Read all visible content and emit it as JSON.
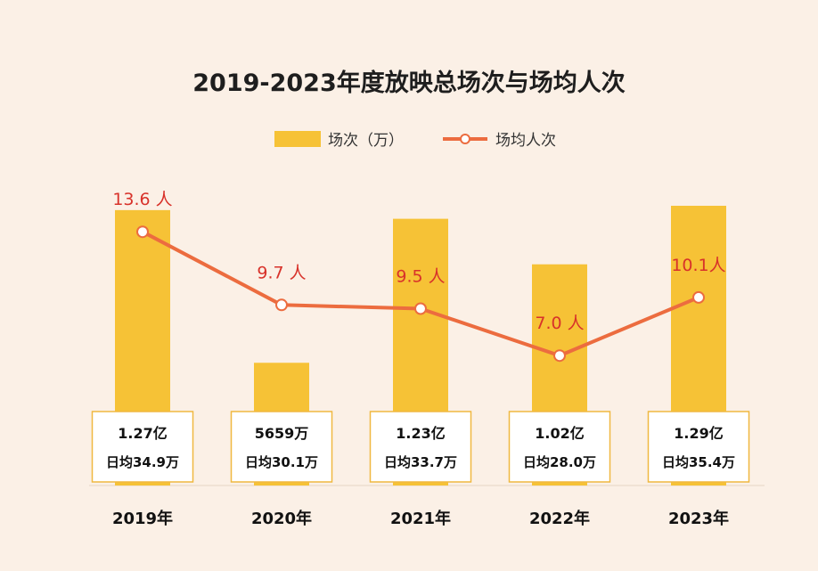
{
  "colors": {
    "background": "#fbf0e6",
    "bar": "#f6c236",
    "line": "#ec6c3f",
    "line_label": "#d8322a",
    "box_border": "#f0b841",
    "box_fill": "#ffffff",
    "text": "#111111"
  },
  "chart_data": {
    "type": "bar",
    "title": "2019-2023年度放映总场次与场均人次",
    "legend_position": "top-center",
    "categories": [
      "2019年",
      "2020年",
      "2021年",
      "2022年",
      "2023年"
    ],
    "series": [
      {
        "name": "场次（万）",
        "type": "bar",
        "values": [
          12700,
          5659,
          12300,
          10200,
          12900
        ],
        "value_labels": [
          "1.27亿",
          "5659万",
          "1.23亿",
          "1.02亿",
          "1.29亿"
        ],
        "sub_labels": [
          "日均34.9万",
          "日均30.1万",
          "日均33.7万",
          "日均28.0万",
          "日均35.4万"
        ]
      },
      {
        "name": "场均人次",
        "type": "line",
        "values": [
          13.6,
          9.7,
          9.5,
          7.0,
          10.1
        ],
        "value_labels": [
          "13.6 人",
          "9.7 人",
          "9.5 人",
          "7.0 人",
          "10.1人"
        ]
      }
    ],
    "xlabel": "",
    "ylabel": "",
    "grid": false
  }
}
